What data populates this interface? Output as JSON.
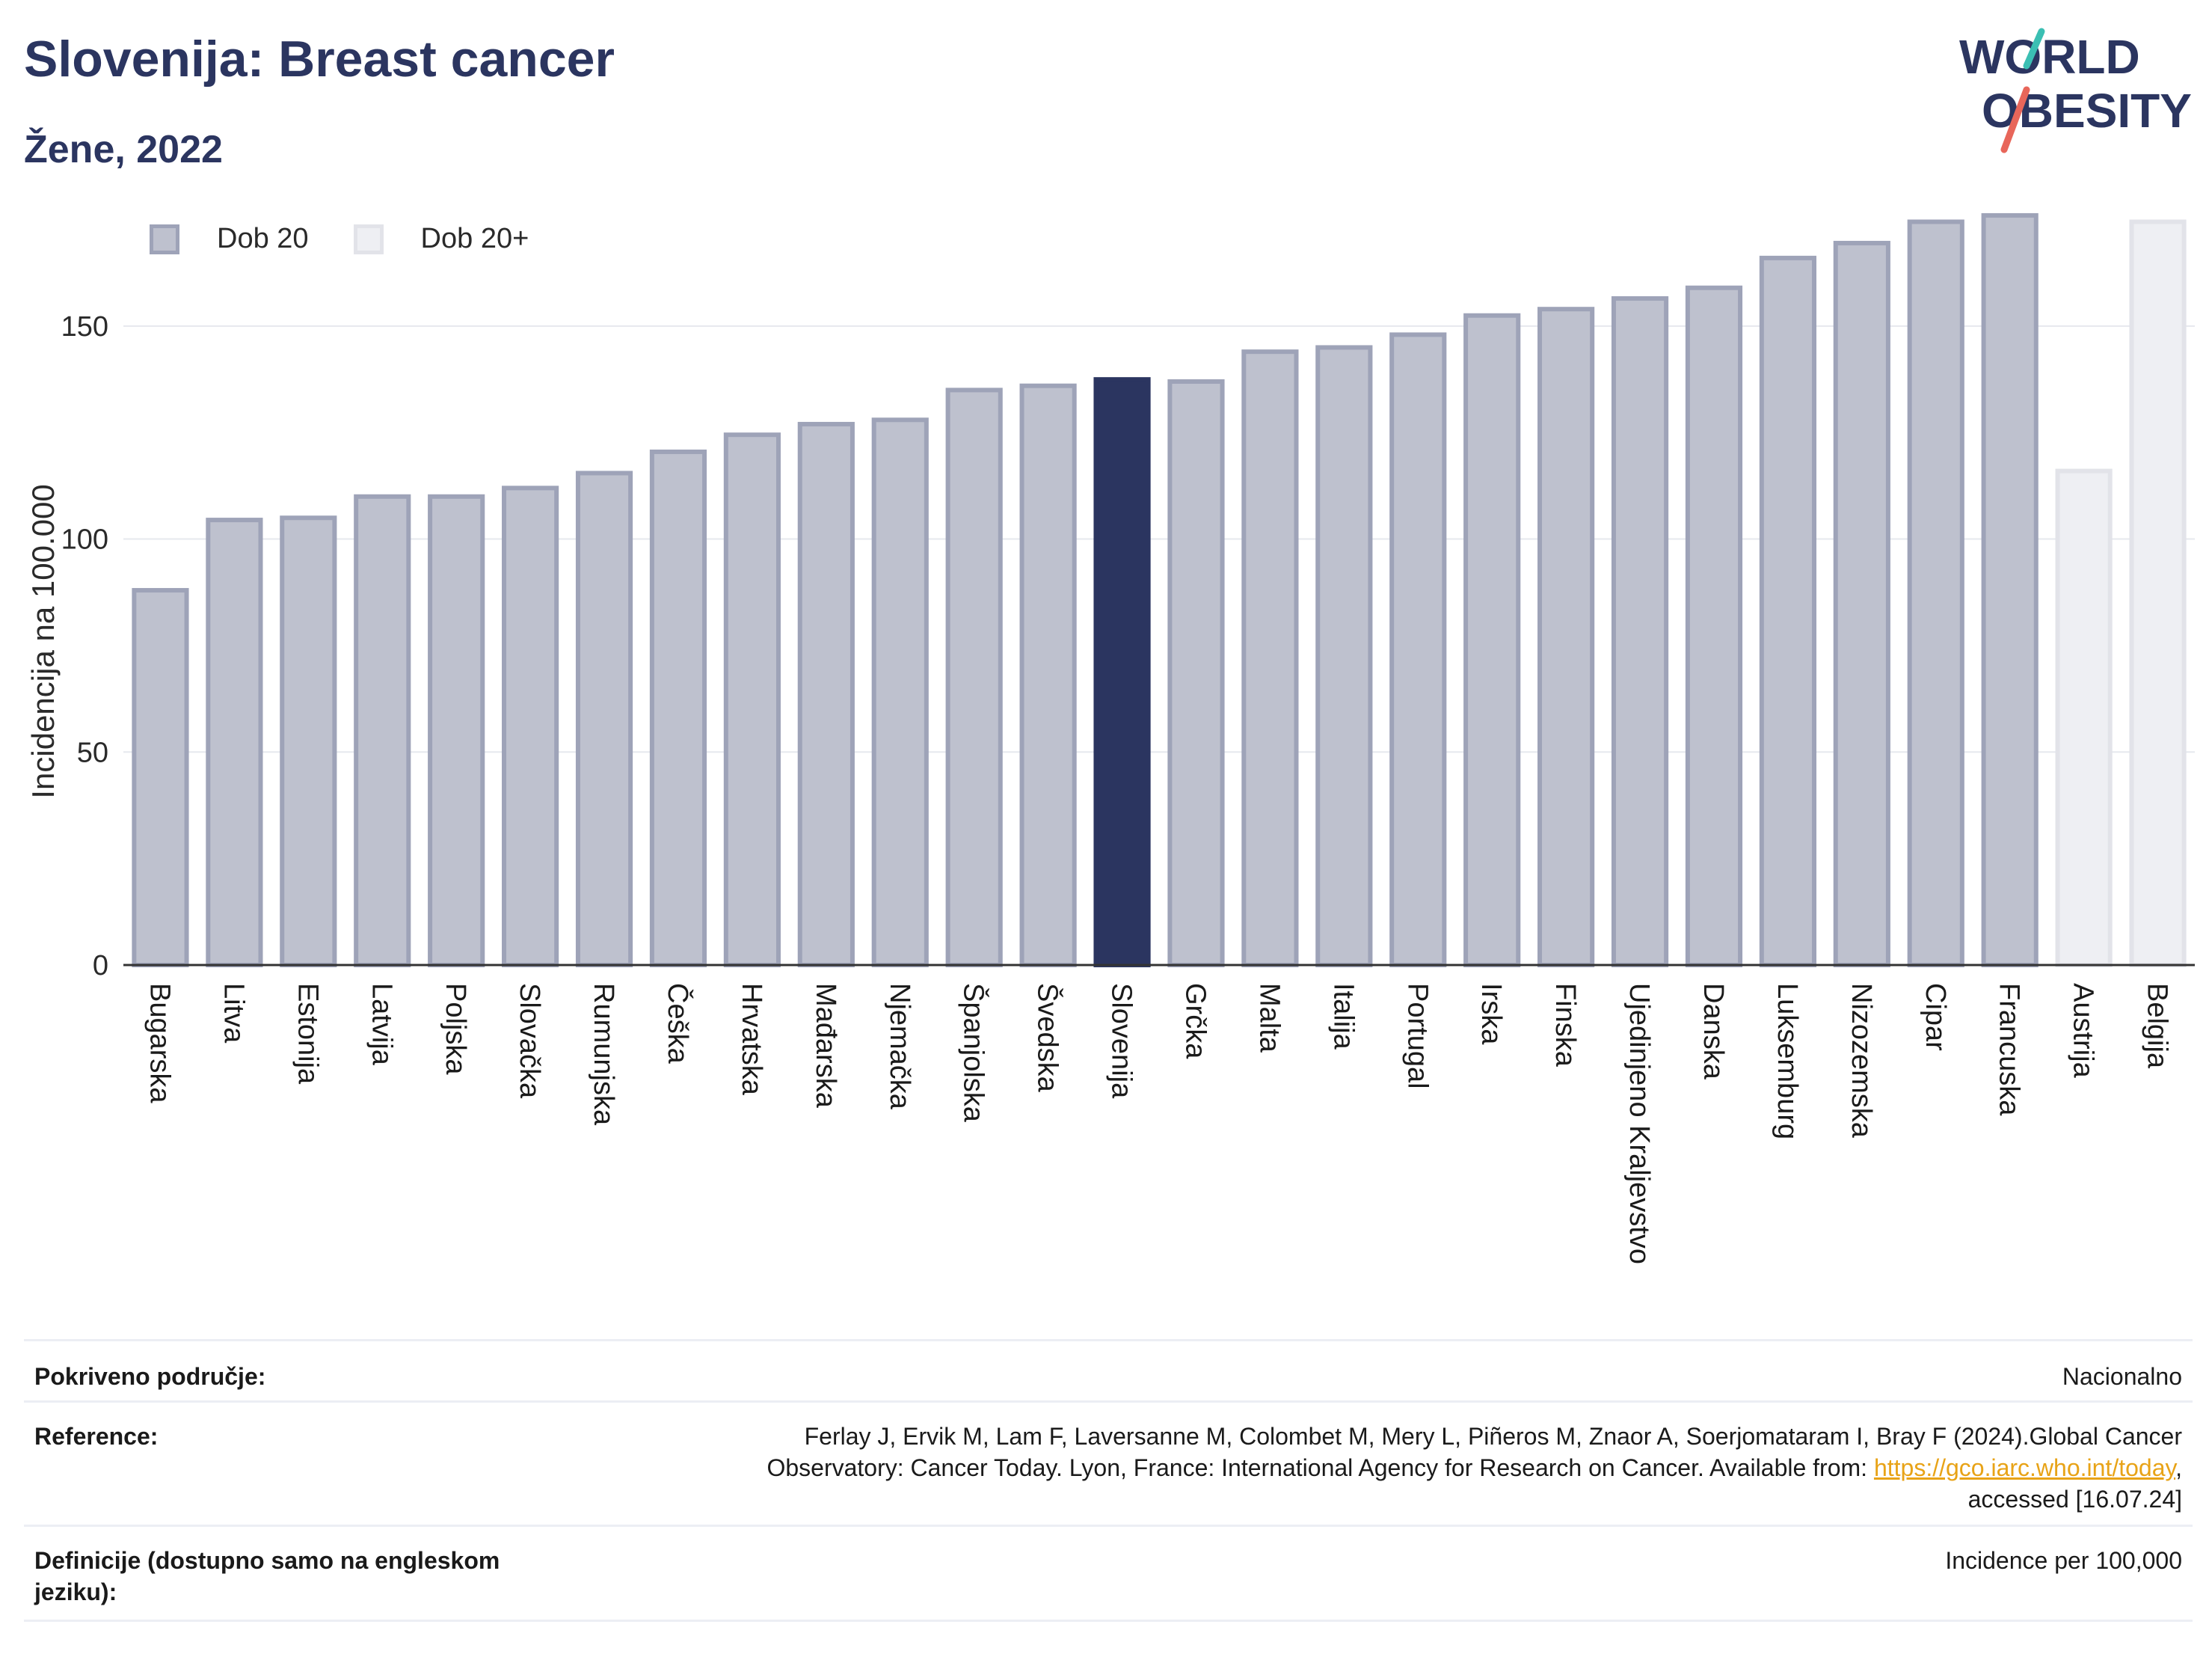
{
  "header": {
    "title": "Slovenija: Breast cancer",
    "subtitle": "Žene, 2022",
    "logo_line1": "WORLD",
    "logo_line2": "OBESITY"
  },
  "legend": {
    "items": [
      {
        "label": "Dob 20",
        "color": "#bec1ce"
      },
      {
        "label": "Dob 20+",
        "color": "#eeeff3"
      }
    ]
  },
  "chart_data": {
    "type": "bar",
    "title": "Slovenija: Breast cancer",
    "subtitle": "Žene, 2022",
    "ylabel": "Incidencija na 100.000",
    "ylim": [
      0,
      180
    ],
    "yticks": [
      0,
      50,
      100,
      150
    ],
    "grid": true,
    "legend_position": "top-left",
    "categories": [
      "Bugarska",
      "Litva",
      "Estonija",
      "Latvija",
      "Poljska",
      "Slovačka",
      "Rumunjska",
      "Češka",
      "Hrvatska",
      "Mađarska",
      "Njemačka",
      "Španjolska",
      "Švedska",
      "Slovenija",
      "Grčka",
      "Malta",
      "Italija",
      "Portugal",
      "Irska",
      "Finska",
      "Ujedinjeno Kraljevstvo",
      "Danska",
      "Luksemburg",
      "Nizozemska",
      "Cipar",
      "Francuska",
      "Austrija",
      "Belgija"
    ],
    "values": [
      88.5,
      105,
      105.5,
      110.5,
      110.5,
      112.5,
      116,
      121,
      125,
      127.5,
      128.5,
      135.5,
      136.5,
      138,
      137.5,
      144.5,
      145.5,
      148.5,
      153,
      154.5,
      157,
      159.5,
      166.5,
      170,
      175,
      176.5,
      116.5,
      175
    ],
    "groups": [
      "Dob 20",
      "Dob 20",
      "Dob 20",
      "Dob 20",
      "Dob 20",
      "Dob 20",
      "Dob 20",
      "Dob 20",
      "Dob 20",
      "Dob 20",
      "Dob 20",
      "Dob 20",
      "Dob 20",
      "Dob 20",
      "Dob 20",
      "Dob 20",
      "Dob 20",
      "Dob 20",
      "Dob 20",
      "Dob 20",
      "Dob 20",
      "Dob 20",
      "Dob 20",
      "Dob 20",
      "Dob 20",
      "Dob 20",
      "Dob 20+",
      "Dob 20+"
    ],
    "highlight": "Slovenija",
    "colors": {
      "dob20_fill": "#bec1ce",
      "dob20_border": "#9ea3b8",
      "dob20plus_fill": "#eeeff3",
      "dob20plus_border": "#e2e3e9",
      "highlight": "#2b3560"
    }
  },
  "meta": {
    "coverage_label": "Pokriveno područje:",
    "coverage_value": "Nacionalno",
    "reference_label": "Reference:",
    "reference_line1": "Ferlay J, Ervik M, Lam F, Laversanne M, Colombet M, Mery L, Piñeros M, Znaor A, Soerjomataram I, Bray F (2024).Global Cancer",
    "reference_line2_pre": "Observatory: Cancer Today. Lyon, France: International Agency for Research on Cancer. Available from: ",
    "reference_link": "https://gco.iarc.who.int/today",
    "reference_line2_post": ",",
    "reference_line3": "accessed [16.07.24]",
    "definitions_label_line1": "Definicije (dostupno samo na engleskom",
    "definitions_label_line2": "jeziku):",
    "definitions_value": "Incidence per 100,000"
  }
}
